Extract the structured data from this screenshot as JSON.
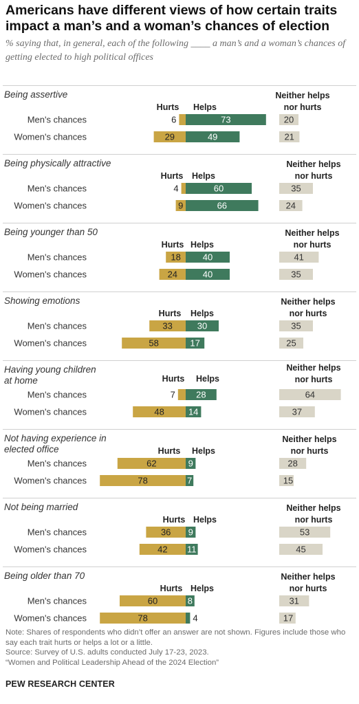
{
  "title": "Americans have different views of how certain traits impact a man’s and a woman’s chances of election",
  "subtitle": "% saying that, in general, each of the following ____ a man’s and a woman’s chances of getting elected to high political offices",
  "footer": {
    "note": "Note: Shares of respondents who didn’t offer an answer are not shown. Figures include those who say each trait hurts or helps a lot or a little.",
    "source": "Source: Survey of U.S. adults conducted July 17-23, 2023.",
    "report": "“Women and Political Leadership Ahead of the 2024 Election”",
    "brand": "PEW RESEARCH CENTER"
  },
  "colors": {
    "hurts": "#c9a544",
    "helps": "#3f7a5d",
    "neither": "#d9d5c7",
    "divider": "#cfcfcf"
  },
  "chart_data": {
    "type": "bar",
    "orientation": "horizontal",
    "stacked": "diverging",
    "header_labels": {
      "hurts": "Hurts",
      "helps": "Helps",
      "neither": "Neither helps nor hurts"
    },
    "row_labels": [
      "Men's chances",
      "Women's chances"
    ],
    "series": [
      {
        "key": "hurts",
        "name": "Hurts"
      },
      {
        "key": "helps",
        "name": "Helps"
      },
      {
        "key": "neither",
        "name": "Neither helps nor hurts"
      }
    ],
    "groups": [
      {
        "trait": "Being assertive",
        "rows": [
          {
            "hurts": 6,
            "helps": 73,
            "neither": 20
          },
          {
            "hurts": 29,
            "helps": 49,
            "neither": 21
          }
        ]
      },
      {
        "trait": "Being physically attractive",
        "rows": [
          {
            "hurts": 4,
            "helps": 60,
            "neither": 35
          },
          {
            "hurts": 9,
            "helps": 66,
            "neither": 24
          }
        ]
      },
      {
        "trait": "Being younger than 50",
        "rows": [
          {
            "hurts": 18,
            "helps": 40,
            "neither": 41
          },
          {
            "hurts": 24,
            "helps": 40,
            "neither": 35
          }
        ]
      },
      {
        "trait": "Showing emotions",
        "rows": [
          {
            "hurts": 33,
            "helps": 30,
            "neither": 35
          },
          {
            "hurts": 58,
            "helps": 17,
            "neither": 25
          }
        ]
      },
      {
        "trait": "Having young children at home",
        "rows": [
          {
            "hurts": 7,
            "helps": 28,
            "neither": 64
          },
          {
            "hurts": 48,
            "helps": 14,
            "neither": 37
          }
        ]
      },
      {
        "trait": "Not having experience in elected office",
        "rows": [
          {
            "hurts": 62,
            "helps": 9,
            "neither": 28
          },
          {
            "hurts": 78,
            "helps": 7,
            "neither": 15
          }
        ]
      },
      {
        "trait": "Not being married",
        "rows": [
          {
            "hurts": 36,
            "helps": 9,
            "neither": 53
          },
          {
            "hurts": 42,
            "helps": 11,
            "neither": 45
          }
        ]
      },
      {
        "trait": "Being older than 70",
        "rows": [
          {
            "hurts": 60,
            "helps": 8,
            "neither": 31
          },
          {
            "hurts": 78,
            "helps": 4,
            "neither": 17
          }
        ]
      }
    ]
  }
}
